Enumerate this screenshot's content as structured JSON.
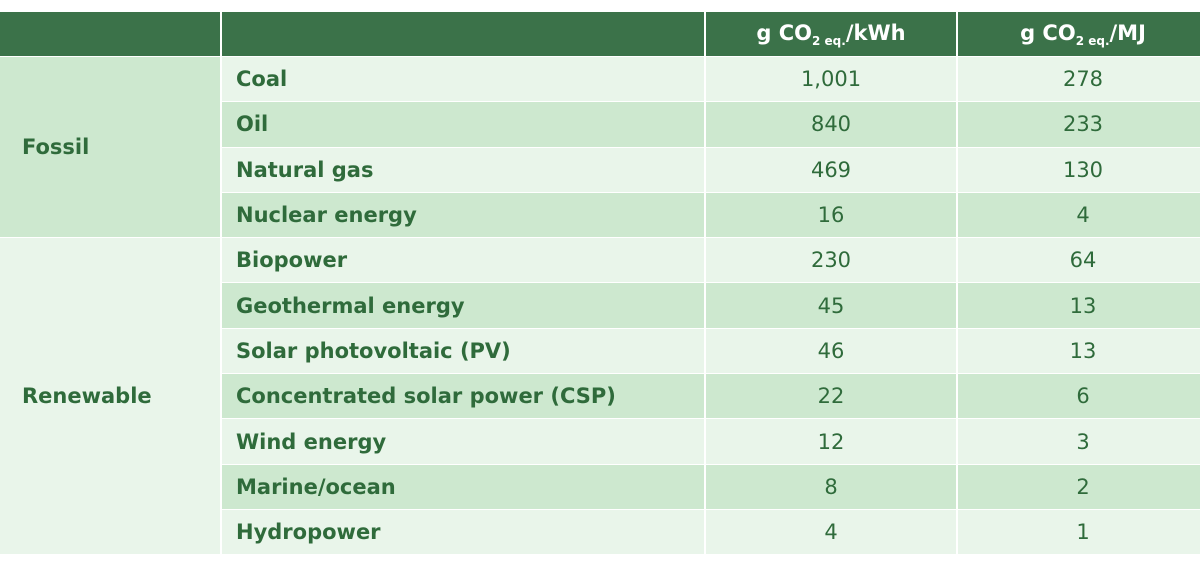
{
  "table": {
    "header": [
      {
        "pre": "g CO",
        "sub": "2 eq.",
        "post": "/kWh"
      },
      {
        "pre": "g CO",
        "sub": "2 eq.",
        "post": "/MJ"
      }
    ],
    "groups": [
      {
        "label": "Fossil",
        "rows": [
          [
            "Coal",
            "1,001",
            "278"
          ],
          [
            "Oil",
            "840",
            "233"
          ],
          [
            "Natural gas",
            "469",
            "130"
          ],
          [
            "Nuclear energy",
            "16",
            "4"
          ]
        ]
      },
      {
        "label": "Renewable",
        "rows": [
          [
            "Biopower",
            "230",
            "64"
          ],
          [
            "Geothermal energy",
            "45",
            "13"
          ],
          [
            "Solar photovoltaic (PV)",
            "46",
            "13"
          ],
          [
            "Concentrated solar power (CSP)",
            "22",
            "6"
          ],
          [
            "Wind energy",
            "12",
            "3"
          ],
          [
            "Marine/ocean",
            "8",
            "2"
          ],
          [
            "Hydropower",
            "4",
            "1"
          ]
        ]
      }
    ]
  }
}
